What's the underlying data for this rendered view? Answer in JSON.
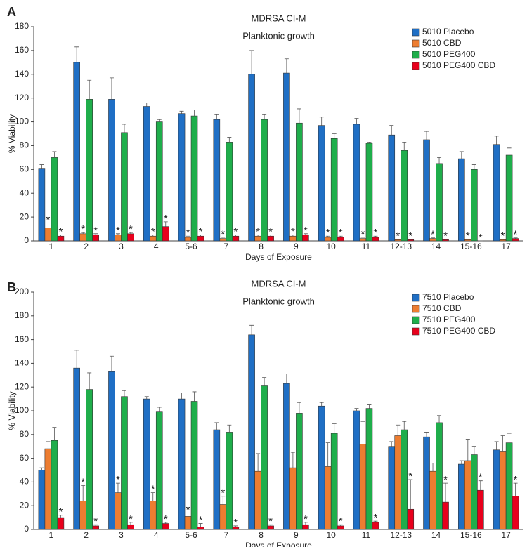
{
  "chart_data": [
    {
      "type": "bar",
      "panel": "A",
      "title": "MDRSA CI-M",
      "subtitle": "Planktonic growth",
      "xlabel": "Days of Exposure",
      "ylabel": "% Viability",
      "categories": [
        "1",
        "2",
        "3",
        "4",
        "5-6",
        "7",
        "8",
        "9",
        "10",
        "11",
        "12-13",
        "14",
        "15-16",
        "17"
      ],
      "ylim": [
        0,
        180
      ],
      "yticks": [
        0,
        20,
        40,
        60,
        80,
        100,
        120,
        140,
        160,
        180
      ],
      "legend": "upper right",
      "series": [
        {
          "name": "5010 Placebo",
          "color": "#1f6fc5",
          "values": [
            61,
            150,
            119,
            113,
            107,
            102,
            140,
            141,
            97,
            98,
            89,
            85,
            69,
            81
          ],
          "errors": [
            3,
            13,
            18,
            3,
            2,
            4,
            20,
            12,
            7,
            5,
            8,
            7,
            6,
            7
          ]
        },
        {
          "name": "5010 CBD",
          "color": "#ed7d31",
          "values": [
            11,
            6,
            5,
            4,
            3,
            2,
            4,
            4,
            3,
            2,
            1,
            2,
            1,
            1
          ],
          "errors": [
            4,
            1,
            1,
            1,
            1,
            1,
            1,
            1,
            1,
            1,
            0.5,
            0.5,
            0.5,
            0.5
          ],
          "annotations": [
            "*",
            "*",
            "*",
            "*",
            "*",
            "*",
            "*",
            "*",
            "*",
            "*",
            "*",
            "*",
            "*",
            "*"
          ]
        },
        {
          "name": "5010 PEG400",
          "color": "#1fae4b",
          "values": [
            70,
            119,
            91,
            100,
            105,
            83,
            102,
            99,
            86,
            82,
            76,
            65,
            60,
            72
          ],
          "errors": [
            5,
            16,
            7,
            2,
            5,
            4,
            4,
            12,
            4,
            1,
            7,
            5,
            4,
            6
          ]
        },
        {
          "name": "5010 PEG400 CBD",
          "color": "#e8001c",
          "values": [
            4,
            5,
            6,
            12,
            4,
            4,
            4,
            5,
            3,
            3,
            1,
            1,
            0,
            2
          ],
          "errors": [
            1,
            1,
            1,
            4,
            1,
            1,
            1,
            1,
            1,
            1,
            0.5,
            0.5,
            0,
            0.5
          ],
          "annotations": [
            "*",
            "*",
            "*",
            "*",
            "*",
            "*",
            "*",
            "*",
            "*",
            "*",
            "*",
            "*",
            "*",
            "*"
          ]
        }
      ]
    },
    {
      "type": "bar",
      "panel": "B",
      "title": "MDRSA CI-M",
      "subtitle": "Planktonic growth",
      "xlabel": "Days of Exposure",
      "ylabel": "% Viability",
      "categories": [
        "1",
        "2",
        "3",
        "4",
        "5-6",
        "7",
        "8",
        "9",
        "10",
        "11",
        "12-13",
        "14",
        "15-16",
        "17"
      ],
      "ylim": [
        0,
        200
      ],
      "yticks": [
        0,
        20,
        40,
        60,
        80,
        100,
        120,
        140,
        160,
        180,
        200
      ],
      "legend": "upper right",
      "series": [
        {
          "name": "7510 Placebo",
          "color": "#1f6fc5",
          "values": [
            50,
            136,
            133,
            110,
            110,
            84,
            164,
            123,
            104,
            100,
            70,
            78,
            55,
            67
          ],
          "errors": [
            2,
            15,
            13,
            2,
            5,
            6,
            8,
            8,
            3,
            2,
            4,
            4,
            3,
            7
          ]
        },
        {
          "name": "7510 CBD",
          "color": "#ed7d31",
          "values": [
            68,
            24,
            31,
            24,
            11,
            21,
            49,
            52,
            53,
            72,
            79,
            49,
            58,
            66
          ],
          "errors": [
            6,
            13,
            8,
            7,
            3,
            7,
            15,
            13,
            20,
            19,
            9,
            7,
            18,
            13
          ],
          "annotations": [
            null,
            "*",
            "*",
            "*",
            "*",
            "*",
            null,
            null,
            null,
            null,
            null,
            null,
            null,
            null
          ]
        },
        {
          "name": "7510 PEG400",
          "color": "#1fae4b",
          "values": [
            75,
            118,
            112,
            99,
            108,
            82,
            121,
            98,
            81,
            102,
            84,
            90,
            63,
            73
          ],
          "errors": [
            11,
            14,
            5,
            4,
            8,
            6,
            7,
            9,
            8,
            3,
            7,
            6,
            7,
            8
          ]
        },
        {
          "name": "7510 PEG400 CBD",
          "color": "#e8001c",
          "values": [
            10,
            3,
            4,
            5,
            2,
            2,
            3,
            4,
            3,
            6,
            17,
            23,
            33,
            28
          ],
          "errors": [
            2,
            1,
            2,
            1,
            3,
            1,
            1,
            2,
            1,
            1,
            25,
            16,
            8,
            11
          ],
          "annotations": [
            "*",
            "*",
            "*",
            "*",
            "*",
            "*",
            "*",
            "*",
            "*",
            "*",
            "*",
            "*",
            "*",
            "*"
          ]
        }
      ]
    }
  ]
}
